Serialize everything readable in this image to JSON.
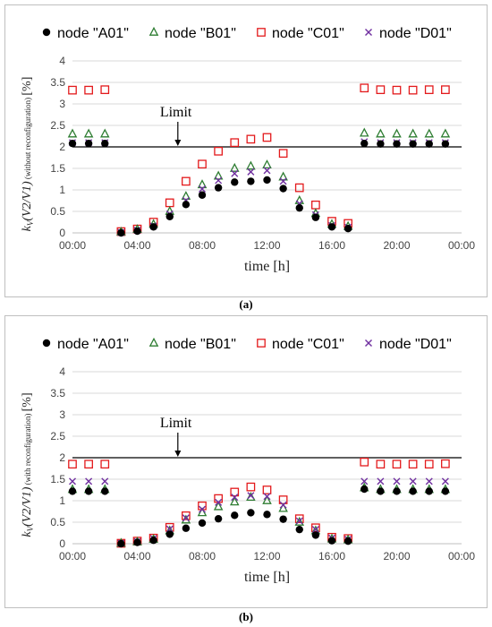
{
  "captions": [
    "(a)",
    "(b)"
  ],
  "colors": {
    "A01": "#000000",
    "B01": "#2e7d32",
    "C01": "#e31a1c",
    "D01": "#7030a0",
    "limit_line": "#000000",
    "grid": "#d9d9d9"
  },
  "chart_data": [
    {
      "type": "scatter",
      "xlabel": "time [h]",
      "ylabel_main": "k",
      "ylabel_sub": "V",
      "ylabel_expr": "(V2/V1)",
      "ylabel_note": "(without reconfiguration)",
      "ylabel_unit": "[%]",
      "x_ticks": [
        "00:00",
        "04:00",
        "08:00",
        "12:00",
        "16:00",
        "20:00",
        "00:00"
      ],
      "xlim": [
        0,
        24
      ],
      "ylim": [
        0,
        4
      ],
      "y_ticks": [
        "0",
        "0.5",
        "1",
        "1.5",
        "2",
        "2.5",
        "3",
        "3.5",
        "4"
      ],
      "grid": "horizontal",
      "legend_position": "top",
      "annotation": {
        "text": "Limit",
        "x": 6.5,
        "y": 2.0
      },
      "limit": 2,
      "x": [
        0,
        1,
        2,
        3,
        4,
        5,
        6,
        7,
        8,
        9,
        10,
        11,
        12,
        13,
        14,
        15,
        16,
        17,
        18,
        19,
        20,
        21,
        22,
        23
      ],
      "series": [
        {
          "name": "node \"A01\"",
          "marker": "circle",
          "values": [
            2.08,
            2.08,
            2.08,
            0.0,
            0.04,
            0.14,
            0.38,
            0.66,
            0.88,
            1.05,
            1.18,
            1.2,
            1.23,
            1.03,
            0.58,
            0.36,
            0.14,
            0.1,
            2.08,
            2.07,
            2.07,
            2.07,
            2.07,
            2.07
          ]
        },
        {
          "name": "node \"B01\"",
          "marker": "triangle",
          "values": [
            2.3,
            2.3,
            2.3,
            0.02,
            0.08,
            0.2,
            0.5,
            0.85,
            1.12,
            1.32,
            1.5,
            1.55,
            1.58,
            1.3,
            0.75,
            0.45,
            0.2,
            0.15,
            2.32,
            2.3,
            2.3,
            2.3,
            2.3,
            2.3
          ]
        },
        {
          "name": "node \"C01\"",
          "marker": "square",
          "values": [
            3.32,
            3.32,
            3.33,
            0.03,
            0.09,
            0.25,
            0.7,
            1.2,
            1.6,
            1.9,
            2.1,
            2.18,
            2.22,
            1.85,
            1.05,
            0.65,
            0.27,
            0.22,
            3.37,
            3.33,
            3.32,
            3.32,
            3.33,
            3.33
          ]
        },
        {
          "name": "node \"D01\"",
          "marker": "x",
          "values": [
            2.1,
            2.1,
            2.1,
            0.01,
            0.06,
            0.16,
            0.44,
            0.75,
            1.02,
            1.22,
            1.38,
            1.42,
            1.45,
            1.2,
            0.68,
            0.42,
            0.17,
            0.13,
            2.12,
            2.1,
            2.1,
            2.1,
            2.1,
            2.1
          ]
        }
      ]
    },
    {
      "type": "scatter",
      "xlabel": "time [h]",
      "ylabel_main": "k",
      "ylabel_sub": "V",
      "ylabel_expr": "(V2/V1)",
      "ylabel_note": "(with reconfiguration)",
      "ylabel_unit": "[%]",
      "x_ticks": [
        "00:00",
        "04:00",
        "08:00",
        "12:00",
        "16:00",
        "20:00",
        "00:00"
      ],
      "xlim": [
        0,
        24
      ],
      "ylim": [
        0,
        4
      ],
      "y_ticks": [
        "0",
        "0.5",
        "1",
        "1.5",
        "2",
        "2.5",
        "3",
        "3.5",
        "4"
      ],
      "grid": "horizontal",
      "legend_position": "top",
      "annotation": {
        "text": "Limit",
        "x": 6.5,
        "y": 2.0
      },
      "limit": 2,
      "x": [
        0,
        1,
        2,
        3,
        4,
        5,
        6,
        7,
        8,
        9,
        10,
        11,
        12,
        13,
        14,
        15,
        16,
        17,
        18,
        19,
        20,
        21,
        22,
        23
      ],
      "series": [
        {
          "name": "node \"A01\"",
          "marker": "circle",
          "values": [
            1.22,
            1.22,
            1.22,
            0.0,
            0.03,
            0.08,
            0.22,
            0.36,
            0.48,
            0.58,
            0.66,
            0.72,
            0.68,
            0.57,
            0.33,
            0.2,
            0.07,
            0.06,
            1.27,
            1.22,
            1.22,
            1.22,
            1.22,
            1.22
          ]
        },
        {
          "name": "node \"B01\"",
          "marker": "triangle",
          "values": [
            1.26,
            1.26,
            1.26,
            0.01,
            0.04,
            0.1,
            0.3,
            0.55,
            0.72,
            0.86,
            0.97,
            1.08,
            1.0,
            0.82,
            0.5,
            0.3,
            0.11,
            0.09,
            1.3,
            1.26,
            1.26,
            1.26,
            1.26,
            1.26
          ]
        },
        {
          "name": "node \"C01\"",
          "marker": "square",
          "values": [
            1.85,
            1.85,
            1.85,
            0.01,
            0.06,
            0.13,
            0.38,
            0.65,
            0.88,
            1.05,
            1.2,
            1.32,
            1.25,
            1.02,
            0.58,
            0.37,
            0.15,
            0.12,
            1.9,
            1.85,
            1.85,
            1.85,
            1.85,
            1.86
          ]
        },
        {
          "name": "node \"D01\"",
          "marker": "x",
          "values": [
            1.45,
            1.45,
            1.45,
            0.01,
            0.05,
            0.12,
            0.34,
            0.6,
            0.8,
            0.96,
            1.08,
            1.12,
            1.1,
            0.9,
            0.53,
            0.33,
            0.13,
            0.1,
            1.45,
            1.45,
            1.45,
            1.45,
            1.45,
            1.45
          ]
        }
      ]
    }
  ]
}
